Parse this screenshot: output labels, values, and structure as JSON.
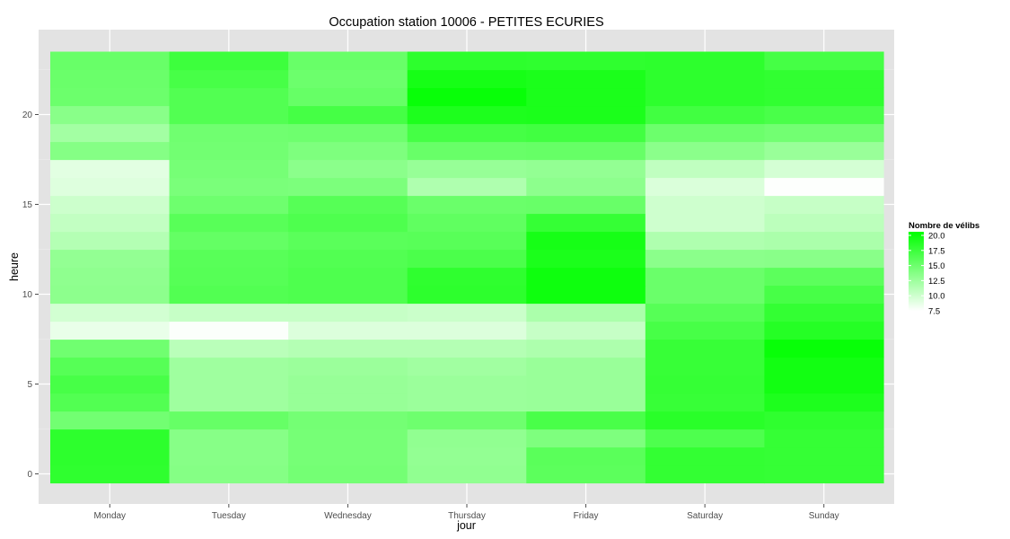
{
  "chart_data": {
    "type": "heatmap",
    "title": "Occupation station 10006 - PETITES ECURIES",
    "xlabel": "jour",
    "ylabel": "heure",
    "x": [
      "Monday",
      "Tuesday",
      "Wednesday",
      "Thursday",
      "Friday",
      "Saturday",
      "Sunday"
    ],
    "y": [
      0,
      1,
      2,
      3,
      4,
      5,
      6,
      7,
      8,
      9,
      10,
      11,
      12,
      13,
      14,
      15,
      16,
      17,
      18,
      19,
      20,
      21,
      22,
      23
    ],
    "ylim": [
      -0.5,
      23.5
    ],
    "y_ticks": [
      0,
      5,
      10,
      15,
      20
    ],
    "grid": true,
    "values": [
      [
        17.7,
        13.5,
        14.3,
        12.9,
        15.5,
        17.5,
        17.4
      ],
      [
        17.8,
        13.4,
        14.2,
        12.8,
        15.6,
        17.5,
        17.4
      ],
      [
        17.8,
        13.4,
        14.2,
        12.9,
        13.8,
        16.2,
        17.4
      ],
      [
        14.4,
        15.0,
        14.3,
        14.6,
        16.4,
        18.0,
        17.7
      ],
      [
        16.0,
        12.2,
        12.6,
        12.4,
        12.5,
        17.3,
        18.6
      ],
      [
        16.5,
        12.2,
        12.6,
        12.4,
        12.5,
        17.4,
        19.1
      ],
      [
        15.8,
        12.2,
        12.4,
        12.1,
        12.5,
        17.3,
        19.1
      ],
      [
        14.5,
        10.9,
        11.2,
        11.2,
        11.5,
        17.3,
        19.6
      ],
      [
        8.6,
        7.7,
        9.2,
        9.2,
        10.3,
        16.5,
        18.2
      ],
      [
        9.7,
        10.3,
        10.3,
        10.1,
        11.6,
        15.8,
        17.5
      ],
      [
        13.1,
        16.0,
        16.2,
        17.8,
        19.3,
        14.8,
        16.5
      ],
      [
        13.0,
        15.8,
        16.2,
        17.7,
        19.3,
        14.8,
        15.5
      ],
      [
        12.8,
        15.7,
        16.0,
        16.3,
        18.7,
        13.2,
        13.3
      ],
      [
        11.2,
        15.1,
        15.6,
        15.7,
        18.9,
        11.4,
        11.6
      ],
      [
        10.5,
        15.7,
        16.2,
        15.3,
        17.4,
        9.9,
        10.8
      ],
      [
        10.0,
        14.6,
        15.8,
        14.8,
        14.9,
        9.9,
        10.3
      ],
      [
        9.1,
        14.0,
        13.9,
        11.4,
        13.1,
        9.3,
        7.6
      ],
      [
        8.9,
        14.2,
        13.2,
        12.6,
        12.8,
        10.6,
        9.6
      ],
      [
        13.5,
        14.4,
        13.8,
        14.9,
        15.0,
        13.2,
        12.5
      ],
      [
        12.0,
        14.5,
        14.6,
        16.6,
        16.8,
        14.7,
        14.4
      ],
      [
        13.3,
        16.0,
        16.6,
        18.6,
        18.7,
        16.8,
        16.4
      ],
      [
        14.7,
        16.0,
        15.0,
        19.6,
        18.7,
        17.8,
        17.6
      ],
      [
        14.8,
        16.5,
        14.7,
        18.9,
        18.7,
        17.8,
        17.6
      ],
      [
        14.9,
        17.0,
        14.9,
        17.8,
        17.7,
        17.8,
        16.6
      ]
    ],
    "legend": {
      "title": "Nombre de vélibs",
      "labels": [
        "20.0",
        "17.5",
        "15.0",
        "12.5",
        "10.0",
        "7.5"
      ],
      "min": 7.5,
      "max": 20.0,
      "position": "right",
      "color_low": "#ffffff",
      "color_high": "#00ff00"
    },
    "colors": {
      "panel": "#e3e3e3",
      "grid_major": "#ffffff",
      "grid_minor": "#efefef"
    }
  }
}
